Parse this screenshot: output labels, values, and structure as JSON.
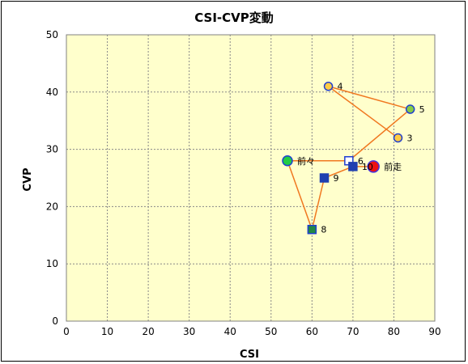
{
  "chart_data": {
    "type": "scatter",
    "title": "CSI-CVP変動",
    "xlabel": "CSI",
    "ylabel": "CVP",
    "xlim": [
      0,
      90
    ],
    "ylim": [
      0,
      50
    ],
    "x_ticks": [
      "0",
      "10",
      "20",
      "30",
      "40",
      "50",
      "60",
      "70",
      "80",
      "90"
    ],
    "y_ticks": [
      "0",
      "10",
      "20",
      "30",
      "40",
      "50"
    ],
    "grid": true,
    "plot_background": "#ffffcc",
    "line_color": "#f07820",
    "points": [
      {
        "label": "3",
        "x": 81,
        "y": 32,
        "shape": "circle",
        "fill": "#ffcc44",
        "stroke": "#1f3fd0",
        "size": 5
      },
      {
        "label": "4",
        "x": 64,
        "y": 41,
        "shape": "circle",
        "fill": "#ffcc44",
        "stroke": "#1f3fd0",
        "size": 5
      },
      {
        "label": "5",
        "x": 84,
        "y": 37,
        "shape": "circle",
        "fill": "#88cc44",
        "stroke": "#1f3fd0",
        "size": 5
      },
      {
        "label": "6",
        "x": 69,
        "y": 28,
        "shape": "square",
        "fill": "#ffffff",
        "stroke": "#1f3fd0",
        "size": 5
      },
      {
        "label": "前々",
        "x": 54,
        "y": 28,
        "shape": "circle",
        "fill": "#22cc44",
        "stroke": "#1f3fd0",
        "size": 6
      },
      {
        "label": "8",
        "x": 60,
        "y": 16,
        "shape": "square",
        "fill": "#228844",
        "stroke": "#1f3fd0",
        "size": 5
      },
      {
        "label": "9",
        "x": 63,
        "y": 25,
        "shape": "square",
        "fill": "#1f3fb0",
        "stroke": "#1f3fb0",
        "size": 5
      },
      {
        "label": "10",
        "x": 70,
        "y": 27,
        "shape": "square",
        "fill": "#1f3fb0",
        "stroke": "#1f3fb0",
        "size": 5
      },
      {
        "label": "前走",
        "x": 75,
        "y": 27,
        "shape": "circle",
        "fill": "#ee1111",
        "stroke": "#4433dd",
        "size": 7
      }
    ]
  }
}
